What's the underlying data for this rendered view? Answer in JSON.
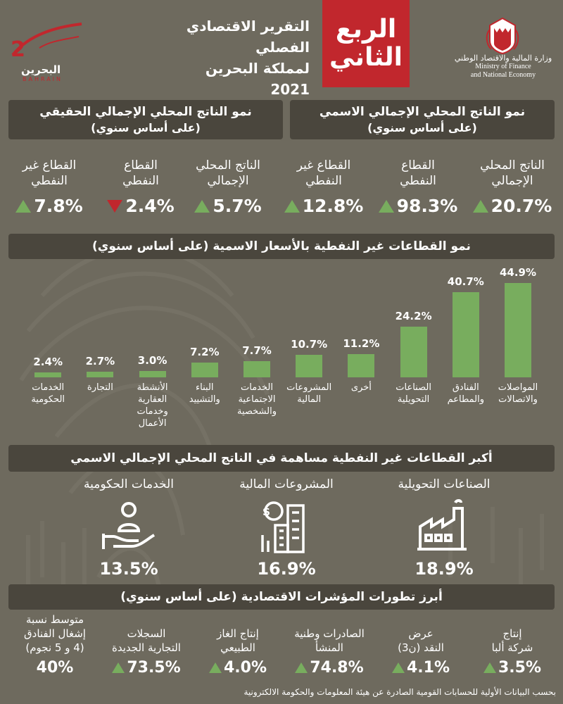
{
  "header": {
    "quarter_line1": "الربع",
    "quarter_line2": "الثاني",
    "title_line1": "التقرير الاقتصادي الفصلي",
    "title_line2": "لمملكة البحرين",
    "year": "2021",
    "logo_brand": "البحرين",
    "logo_sub": "BAHRAIN",
    "ministry_ar": "وزارة المالية والاقتصاد الوطني",
    "ministry_en_line1": "Ministry of Finance",
    "ministry_en_line2": "and National Economy"
  },
  "nominal_gdp": {
    "title_line1": "نمو الناتج المحلي الإجمالي الاسمي",
    "title_line2": "(على أساس سنوي)",
    "metrics": [
      {
        "label_line1": "الناتج المحلي",
        "label_line2": "الإجمالي",
        "value": "20.7%",
        "direction": "up"
      },
      {
        "label_line1": "القطاع",
        "label_line2": "النفطي",
        "value": "98.3%",
        "direction": "up"
      },
      {
        "label_line1": "القطاع غير",
        "label_line2": "النفطي",
        "value": "12.8%",
        "direction": "up"
      }
    ]
  },
  "real_gdp": {
    "title_line1": "نمو الناتج المحلي الإجمالي الحقيقي",
    "title_line2": "(على أساس سنوي)",
    "metrics": [
      {
        "label_line1": "الناتج المحلي",
        "label_line2": "الإجمالي",
        "value": "5.7%",
        "direction": "up"
      },
      {
        "label_line1": "القطاع",
        "label_line2": "النفطي",
        "value": "2.4%",
        "direction": "down"
      },
      {
        "label_line1": "القطاع غير",
        "label_line2": "النفطي",
        "value": "7.8%",
        "direction": "up"
      }
    ]
  },
  "sectors": {
    "title": "نمو القطاعات غير النفطية بالأسعار الاسمية (على أساس سنوي)"
  },
  "chart_data": {
    "type": "bar",
    "title": "نمو القطاعات غير النفطية بالأسعار الاسمية (على أساس سنوي)",
    "unit": "%",
    "categories": [
      [
        "المواصلات",
        "والاتصالات"
      ],
      [
        "الفنادق",
        "والمطاعم"
      ],
      [
        "الصناعات",
        "التحويلية"
      ],
      [
        "أخرى"
      ],
      [
        "المشروعات",
        "المالية"
      ],
      [
        "الخدمات",
        "الاجتماعية",
        "والشخصية"
      ],
      [
        "البناء",
        "والتشييد"
      ],
      [
        "الأنشطة",
        "العقارية",
        "وخدمات",
        "الأعمال"
      ],
      [
        "التجارة"
      ],
      [
        "الخدمات",
        "الحكومية"
      ]
    ],
    "values": [
      44.9,
      40.7,
      24.2,
      11.2,
      10.7,
      7.7,
      7.2,
      3.0,
      2.7,
      2.4
    ],
    "labels": [
      "44.9%",
      "40.7%",
      "24.2%",
      "11.2%",
      "10.7%",
      "7.7%",
      "7.2%",
      "3.0%",
      "2.7%",
      "2.4%"
    ],
    "ylim": [
      0,
      45
    ],
    "color": "#78ad5e"
  },
  "contribution": {
    "title": "أكبر القطاعات غير النفطية مساهمة في الناتج المحلي الإجمالي الاسمي",
    "items": [
      {
        "name": "الصناعات التحويلية",
        "value": "18.9%",
        "icon": "factory-icon"
      },
      {
        "name": "المشروعات المالية",
        "value": "16.9%",
        "icon": "finance-buildings-icon"
      },
      {
        "name": "الخدمات الحكومية",
        "value": "13.5%",
        "icon": "hand-person-icon"
      }
    ]
  },
  "indicators": {
    "title": "أبرز تطورات المؤشرات الاقتصادية (على أساس سنوي)",
    "items": [
      {
        "label_lines": [
          "إنتاج",
          "شركة ألبا"
        ],
        "value": "3.5%",
        "direction": "up"
      },
      {
        "label_lines": [
          "عرض",
          "النقد (ن3)"
        ],
        "value": "4.1%",
        "direction": "up"
      },
      {
        "label_lines": [
          "الصادرات وطنية",
          "المنشأ"
        ],
        "value": "74.8%",
        "direction": "up"
      },
      {
        "label_lines": [
          "إنتاج الغاز",
          "الطبيعي"
        ],
        "value": "4.0%",
        "direction": "up"
      },
      {
        "label_lines": [
          "السجلات",
          "التجارية الجديدة"
        ],
        "value": "73.5%",
        "direction": "up"
      },
      {
        "label_lines": [
          "متوسط نسبة",
          "إشغال الفنادق",
          "(4 و 5 نجوم)"
        ],
        "value": "40%",
        "direction": "none"
      }
    ]
  },
  "source": "بحسب البيانات الأولية للحسابات القومية الصادرة عن هيئة المعلومات والحكومة الالكترونية",
  "colors": {
    "accent_red": "#c1272d",
    "accent_green": "#78ad5e",
    "background": "#6e6a5e",
    "header_bar": "#4a463d"
  }
}
